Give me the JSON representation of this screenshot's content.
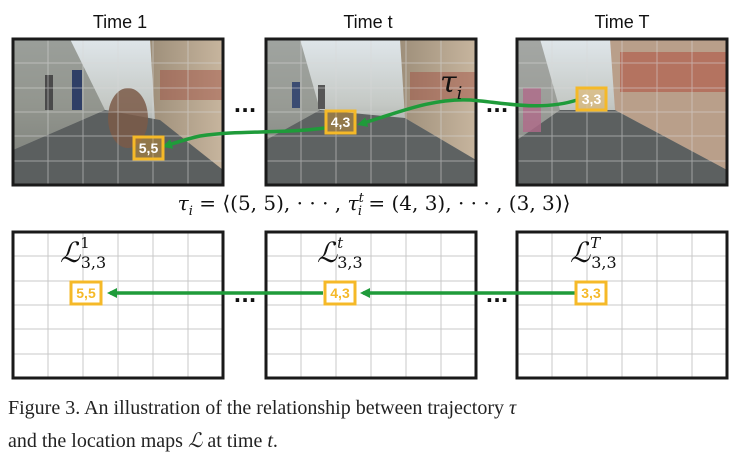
{
  "figure": {
    "time_labels": [
      "Time 1",
      "Time t",
      "Time T"
    ],
    "tau_label": "τ",
    "tau_sub": "i",
    "ellipsis": "···",
    "photo_boxes": [
      "5,5",
      "4,3",
      "3,3"
    ],
    "map_boxes": [
      "5,5",
      "4,3",
      "3,3"
    ],
    "map_labels": [
      {
        "base": "ℒ",
        "sup": "1",
        "sub": "3,3"
      },
      {
        "base": "ℒ",
        "sup": "t",
        "sub": "3,3"
      },
      {
        "base": "ℒ",
        "sup": "T",
        "sub": "3,3"
      }
    ],
    "equation": "τ_i = ⟨(5, 5), · · · , τ_i^t = (4, 3), · · · , (3, 3)⟩",
    "eq_parts": {
      "lhs_base": "τ",
      "lhs_sub": "i",
      "eq1": " = ⟨(5, 5), · · · , ",
      "mid_base": "τ",
      "mid_sup": "t",
      "mid_sub": "i",
      "eq2": " = (4, 3), · · · , (3, 3)⟩"
    },
    "colors": {
      "box": "#f5b928",
      "arrow": "#1f9b3a",
      "grid": "#c8c8c8",
      "frame": "#1a1a1a"
    }
  },
  "caption": {
    "line1_a": "Figure 3.  An illustration of the relationship between trajectory ",
    "line1_math": "τ",
    "line2_a": "and the location maps ",
    "line2_math1": "ℒ",
    "line2_b": " at time ",
    "line2_math2": "t",
    "line2_c": "."
  }
}
